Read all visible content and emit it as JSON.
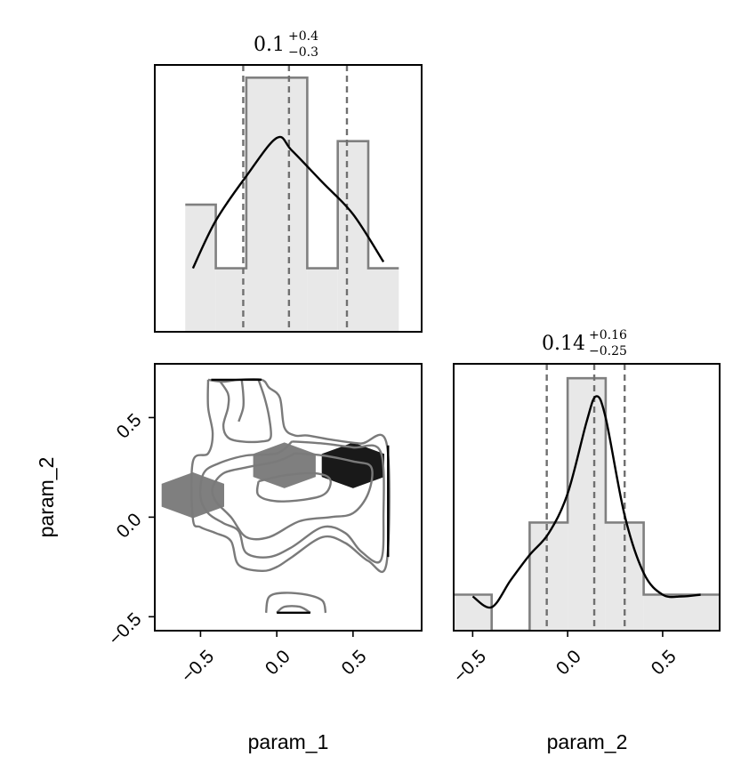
{
  "chart_data": [
    {
      "type": "histogram",
      "panel": "param_1 marginal",
      "title": {
        "median": "0.1",
        "plus": "+0.4",
        "minus": "−0.3"
      },
      "xlim": [
        -0.8,
        0.95
      ],
      "bin_edges": [
        -0.6,
        -0.4,
        -0.2,
        0.2,
        0.4,
        0.6,
        0.8
      ],
      "counts": [
        2,
        1,
        4,
        1,
        3,
        1
      ],
      "ylim": [
        0,
        4.2
      ],
      "quantiles": [
        -0.22,
        0.08,
        0.46
      ],
      "kde": [
        [
          -0.55,
          1.0
        ],
        [
          -0.4,
          1.75
        ],
        [
          -0.2,
          2.45
        ],
        [
          0.0,
          3.05
        ],
        [
          0.1,
          2.85
        ],
        [
          0.3,
          2.35
        ],
        [
          0.5,
          1.85
        ],
        [
          0.7,
          1.1
        ]
      ]
    },
    {
      "type": "contour",
      "panel": "param_1 vs param_2",
      "xlabel": "param_1",
      "ylabel": "param_2",
      "xlim": [
        -0.8,
        0.95
      ],
      "ylim": [
        -0.57,
        0.77
      ],
      "xticks": [
        "−0.5",
        "0.0",
        "0.5"
      ],
      "yticks": [
        "−0.5",
        "0.0",
        "0.5"
      ],
      "hexbins": [
        {
          "x": -0.55,
          "y": 0.11,
          "level": 0.5
        },
        {
          "x": 0.05,
          "y": 0.26,
          "level": 0.5
        },
        {
          "x": 0.5,
          "y": 0.26,
          "level": 0.9
        }
      ],
      "contours": [
        [
          [
            -0.45,
            0.69
          ],
          [
            -0.35,
            0.68
          ],
          [
            -0.25,
            0.69
          ],
          [
            -0.1,
            0.69
          ],
          [
            -0.05,
            0.65
          ],
          [
            0.02,
            0.6
          ],
          [
            0.05,
            0.45
          ],
          [
            0.12,
            0.41
          ],
          [
            0.2,
            0.41
          ],
          [
            0.35,
            0.39
          ],
          [
            0.55,
            0.37
          ],
          [
            0.72,
            0.37
          ],
          [
            0.72,
            -0.23
          ],
          [
            0.6,
            -0.22
          ],
          [
            0.45,
            -0.13
          ],
          [
            0.3,
            -0.1
          ],
          [
            0.1,
            -0.2
          ],
          [
            0.0,
            -0.25
          ],
          [
            -0.1,
            -0.27
          ],
          [
            -0.25,
            -0.24
          ],
          [
            -0.3,
            -0.12
          ],
          [
            -0.4,
            -0.08
          ],
          [
            -0.5,
            -0.05
          ],
          [
            -0.55,
            -0.01
          ],
          [
            -0.55,
            0.28
          ],
          [
            -0.45,
            0.32
          ],
          [
            -0.42,
            0.42
          ],
          [
            -0.45,
            0.55
          ],
          [
            -0.45,
            0.69
          ]
        ],
        [
          [
            -0.38,
            0.69
          ],
          [
            -0.32,
            0.62
          ],
          [
            -0.32,
            0.55
          ],
          [
            -0.35,
            0.46
          ],
          [
            -0.32,
            0.4
          ],
          [
            -0.23,
            0.38
          ],
          [
            -0.1,
            0.38
          ],
          [
            -0.04,
            0.4
          ],
          [
            -0.05,
            0.5
          ],
          [
            -0.08,
            0.6
          ],
          [
            -0.12,
            0.69
          ]
        ],
        [
          [
            -0.23,
            0.69
          ],
          [
            -0.22,
            0.62
          ],
          [
            -0.22,
            0.55
          ],
          [
            -0.25,
            0.48
          ]
        ],
        [
          [
            0.1,
            0.38
          ],
          [
            0.3,
            0.37
          ],
          [
            0.5,
            0.35
          ],
          [
            0.68,
            0.33
          ],
          [
            0.7,
            0.0
          ],
          [
            0.68,
            -0.22
          ],
          [
            0.55,
            -0.17
          ],
          [
            0.45,
            -0.08
          ],
          [
            0.3,
            -0.05
          ],
          [
            0.1,
            -0.15
          ],
          [
            -0.05,
            -0.2
          ],
          [
            -0.2,
            -0.18
          ],
          [
            -0.25,
            -0.07
          ],
          [
            -0.35,
            -0.03
          ],
          [
            -0.45,
            0.02
          ],
          [
            -0.5,
            0.1
          ],
          [
            -0.48,
            0.22
          ],
          [
            -0.38,
            0.27
          ],
          [
            -0.2,
            0.31
          ],
          [
            0.0,
            0.32
          ],
          [
            0.1,
            0.38
          ]
        ],
        [
          [
            0.12,
            0.32
          ],
          [
            0.3,
            0.31
          ],
          [
            0.5,
            0.28
          ],
          [
            0.62,
            0.25
          ],
          [
            0.6,
            0.12
          ],
          [
            0.5,
            0.02
          ],
          [
            0.35,
            0.0
          ],
          [
            0.15,
            -0.02
          ],
          [
            -0.05,
            -0.1
          ],
          [
            -0.2,
            -0.1
          ],
          [
            -0.3,
            0.0
          ],
          [
            -0.4,
            0.08
          ],
          [
            -0.42,
            0.15
          ],
          [
            -0.35,
            0.22
          ],
          [
            -0.2,
            0.25
          ],
          [
            0.0,
            0.28
          ],
          [
            0.12,
            0.32
          ]
        ],
        [
          [
            -0.12,
            0.18
          ],
          [
            0.05,
            0.21
          ],
          [
            0.25,
            0.22
          ],
          [
            0.35,
            0.19
          ],
          [
            0.32,
            0.12
          ],
          [
            0.2,
            0.09
          ],
          [
            0.0,
            0.08
          ],
          [
            -0.12,
            0.11
          ],
          [
            -0.12,
            0.18
          ]
        ],
        [
          [
            -0.07,
            -0.48
          ],
          [
            -0.05,
            -0.4
          ],
          [
            0.05,
            -0.38
          ],
          [
            0.2,
            -0.39
          ],
          [
            0.3,
            -0.42
          ],
          [
            0.32,
            -0.48
          ]
        ],
        [
          [
            0.0,
            -0.48
          ],
          [
            0.05,
            -0.45
          ],
          [
            0.15,
            -0.45
          ],
          [
            0.22,
            -0.48
          ]
        ]
      ]
    },
    {
      "type": "histogram",
      "panel": "param_2 marginal",
      "title": {
        "median": "0.14",
        "plus": "+0.16",
        "minus": "−0.25"
      },
      "xlabel": "param_2",
      "xlim": [
        -0.6,
        0.8
      ],
      "xticks": [
        "−0.5",
        "0.0",
        "0.5"
      ],
      "bin_edges": [
        -0.6,
        -0.4,
        -0.2,
        0.0,
        0.2,
        0.4,
        0.8
      ],
      "counts": [
        1,
        0,
        3,
        7,
        3,
        1
      ],
      "ylim": [
        0,
        7.4
      ],
      "quantiles": [
        -0.11,
        0.14,
        0.3
      ],
      "kde": [
        [
          -0.5,
          0.95
        ],
        [
          -0.4,
          0.65
        ],
        [
          -0.3,
          1.4
        ],
        [
          -0.2,
          2.1
        ],
        [
          -0.1,
          2.7
        ],
        [
          0.0,
          3.8
        ],
        [
          0.1,
          5.8
        ],
        [
          0.15,
          6.5
        ],
        [
          0.2,
          5.9
        ],
        [
          0.3,
          3.2
        ],
        [
          0.4,
          1.6
        ],
        [
          0.5,
          1.0
        ],
        [
          0.6,
          0.95
        ],
        [
          0.7,
          1.0
        ]
      ]
    }
  ]
}
